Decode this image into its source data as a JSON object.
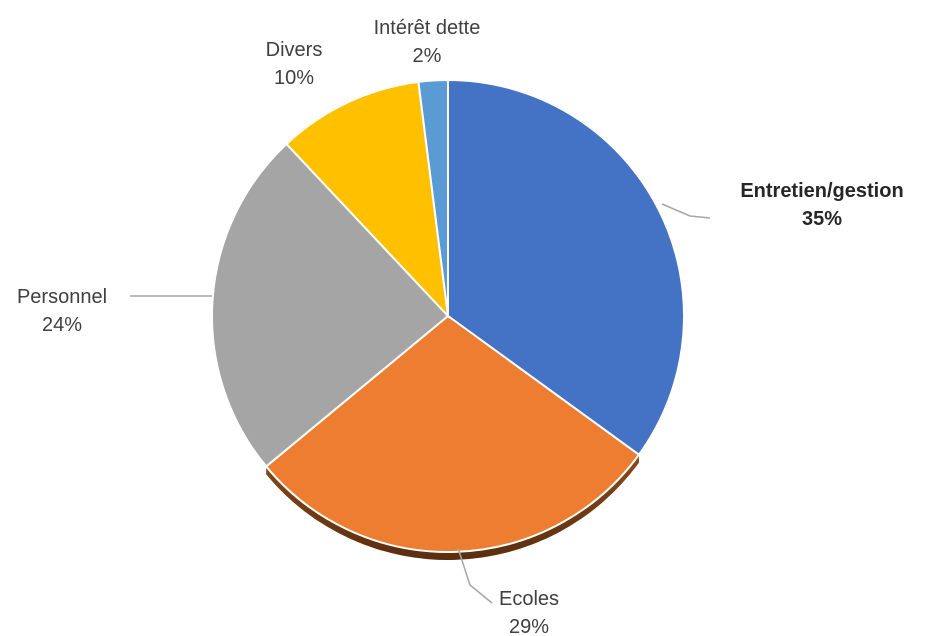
{
  "chart_data": {
    "type": "pie",
    "slices": [
      {
        "label": "Entretien/gestion",
        "value": 35,
        "value_label": "35%",
        "color": "#4472C4",
        "emphasis": true
      },
      {
        "label": "Ecoles",
        "value": 29,
        "value_label": "29%",
        "color": "#ED7D31",
        "emphasis": false
      },
      {
        "label": "Personnel",
        "value": 24,
        "value_label": "24%",
        "color": "#A5A5A5",
        "emphasis": false
      },
      {
        "label": "Divers",
        "value": 10,
        "value_label": "10%",
        "color": "#FFC000",
        "emphasis": false
      },
      {
        "label": "Intérêt dette",
        "value": 2,
        "value_label": "2%",
        "color": "#5B9BD5",
        "emphasis": false
      }
    ],
    "start": "12 o'clock",
    "direction": "clockwise",
    "legend": "none",
    "data_labels": "outside with leader lines"
  }
}
